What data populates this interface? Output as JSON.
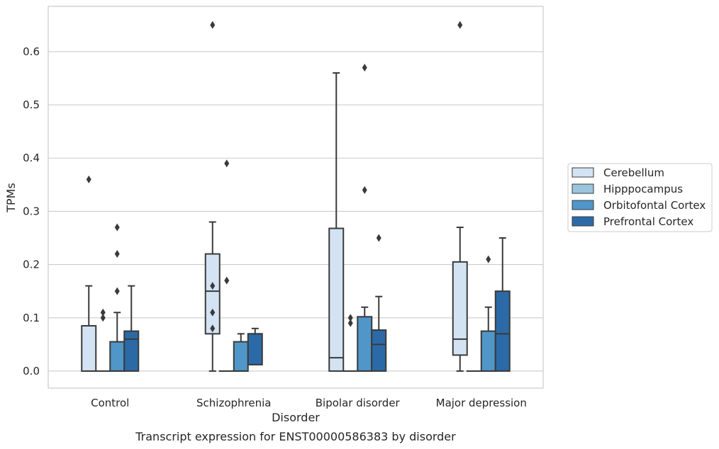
{
  "caption": "Transcript expression for ENST00000586383 by disorder",
  "chart_data": {
    "type": "box",
    "xlabel": "Disorder",
    "ylabel": "TPMs",
    "ylim": [
      -0.032,
      0.685
    ],
    "yticks": [
      0.0,
      0.1,
      0.2,
      0.3,
      0.4,
      0.5,
      0.6
    ],
    "ytick_labels": [
      "0.0",
      "0.1",
      "0.2",
      "0.3",
      "0.4",
      "0.5",
      "0.6"
    ],
    "grid": "horizontal",
    "legend_position": "outside-right",
    "categories": [
      "Control",
      "Schizophrenia",
      "Bipolar disorder",
      "Major depression"
    ],
    "series": [
      {
        "name": "Cerebellum",
        "color": "#d4e3f3",
        "boxes": [
          {
            "q1": 0.0,
            "median": 0.0,
            "q3": 0.085,
            "whisker_low": 0.0,
            "whisker_high": 0.16,
            "outliers": [
              0.36
            ]
          },
          {
            "q1": 0.07,
            "median": 0.15,
            "q3": 0.22,
            "whisker_low": 0.0,
            "whisker_high": 0.28,
            "outliers": [
              0.65,
              0.16,
              0.11,
              0.08
            ]
          },
          {
            "q1": 0.0,
            "median": 0.025,
            "q3": 0.268,
            "whisker_low": 0.0,
            "whisker_high": 0.56,
            "outliers": []
          },
          {
            "q1": 0.03,
            "median": 0.06,
            "q3": 0.205,
            "whisker_low": 0.0,
            "whisker_high": 0.27,
            "outliers": [
              0.65
            ]
          }
        ]
      },
      {
        "name": "Hipppocampus",
        "color": "#9ac5dd",
        "boxes": [
          {
            "q1": 0.0,
            "median": 0.0,
            "q3": 0.0,
            "whisker_low": 0.0,
            "whisker_high": 0.0,
            "outliers": [
              0.11,
              0.1
            ]
          },
          {
            "q1": 0.0,
            "median": 0.0,
            "q3": 0.0,
            "whisker_low": 0.0,
            "whisker_high": 0.0,
            "outliers": [
              0.39,
              0.17
            ]
          },
          {
            "q1": 0.0,
            "median": 0.0,
            "q3": 0.0,
            "whisker_low": 0.0,
            "whisker_high": 0.0,
            "outliers": [
              0.1,
              0.09
            ]
          },
          {
            "q1": 0.0,
            "median": 0.0,
            "q3": 0.0,
            "whisker_low": 0.0,
            "whisker_high": 0.0,
            "outliers": []
          }
        ]
      },
      {
        "name": "Orbitofontal Cortex",
        "color": "#5096c8",
        "boxes": [
          {
            "q1": 0.0,
            "median": 0.0,
            "q3": 0.055,
            "whisker_low": 0.0,
            "whisker_high": 0.11,
            "outliers": [
              0.27,
              0.22,
              0.15
            ]
          },
          {
            "q1": 0.0,
            "median": 0.0,
            "q3": 0.055,
            "whisker_low": 0.0,
            "whisker_high": 0.07,
            "outliers": []
          },
          {
            "q1": 0.0,
            "median": 0.0,
            "q3": 0.102,
            "whisker_low": 0.0,
            "whisker_high": 0.12,
            "outliers": [
              0.57,
              0.34
            ]
          },
          {
            "q1": 0.0,
            "median": 0.0,
            "q3": 0.075,
            "whisker_low": 0.0,
            "whisker_high": 0.12,
            "outliers": [
              0.21
            ]
          }
        ]
      },
      {
        "name": "Prefrontal Cortex",
        "color": "#2b6aa6",
        "boxes": [
          {
            "q1": 0.0,
            "median": 0.06,
            "q3": 0.075,
            "whisker_low": 0.0,
            "whisker_high": 0.16,
            "outliers": []
          },
          {
            "q1": 0.012,
            "median": 0.07,
            "q3": 0.07,
            "whisker_low": 0.012,
            "whisker_high": 0.08,
            "outliers": []
          },
          {
            "q1": 0.0,
            "median": 0.05,
            "q3": 0.077,
            "whisker_low": 0.0,
            "whisker_high": 0.14,
            "outliers": [
              0.25
            ]
          },
          {
            "q1": 0.0,
            "median": 0.07,
            "q3": 0.15,
            "whisker_low": 0.0,
            "whisker_high": 0.25,
            "outliers": []
          }
        ]
      }
    ]
  }
}
